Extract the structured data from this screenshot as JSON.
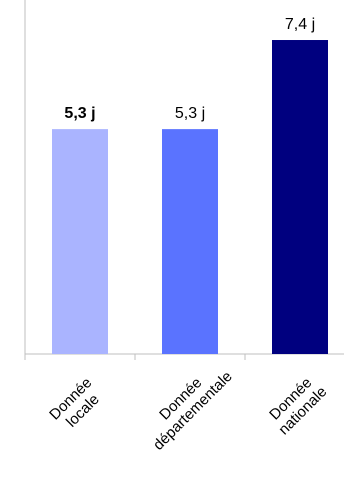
{
  "chart_data": {
    "type": "bar",
    "title": "",
    "xlabel": "",
    "ylabel": "",
    "categories": [
      [
        "Donnée",
        "locale"
      ],
      [
        "Donnée",
        "départementale"
      ],
      [
        "Donnée",
        "nationale"
      ]
    ],
    "values": [
      5.3,
      5.3,
      7.4
    ],
    "value_labels": [
      "5,3 j",
      "5,3 j",
      "7,4 j"
    ],
    "value_label_bold": [
      true,
      false,
      false
    ],
    "colors": [
      "#aab4ff",
      "#5a73ff",
      "#00007f"
    ],
    "ylim": [
      0,
      8
    ],
    "grid": false,
    "legend": "none",
    "axis_color": "#bfbfbf",
    "data_label_color": "#000000"
  }
}
